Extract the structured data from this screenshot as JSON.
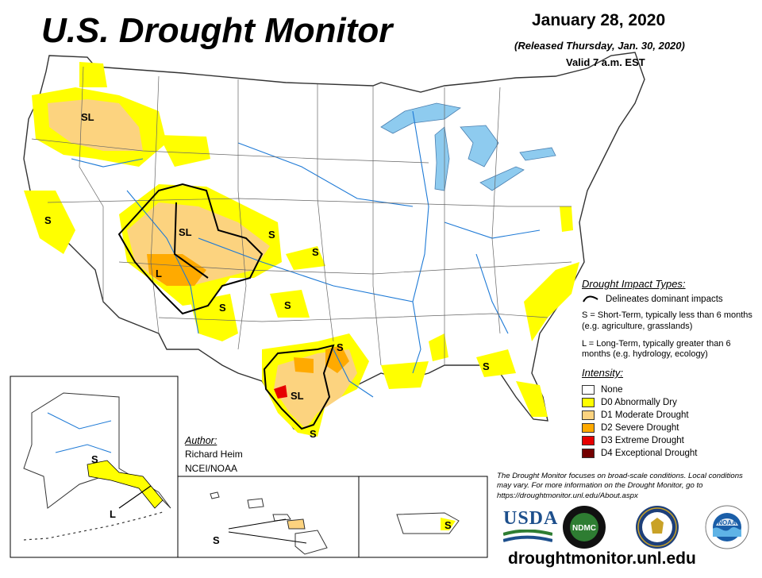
{
  "header": {
    "title": "U.S. Drought Monitor",
    "date": "January 28, 2020",
    "released": "(Released Thursday, Jan. 30, 2020)",
    "valid": "Valid 7 a.m. EST"
  },
  "legend": {
    "impact_heading": "Drought Impact Types:",
    "delineates": "Delineates dominant impacts",
    "short_term": "S = Short-Term, typically less than 6 months (e.g. agriculture, grasslands)",
    "long_term": "L = Long-Term, typically greater than 6 months (e.g. hydrology, ecology)",
    "intensity_heading": "Intensity:",
    "categories": [
      {
        "label": "None",
        "color": "#ffffff"
      },
      {
        "label": "D0 Abnormally Dry",
        "color": "#ffff00"
      },
      {
        "label": "D1 Moderate Drought",
        "color": "#fcd37f"
      },
      {
        "label": "D2 Severe Drought",
        "color": "#ffaa00"
      },
      {
        "label": "D3 Extreme Drought",
        "color": "#e60000"
      },
      {
        "label": "D4 Exceptional Drought",
        "color": "#730000"
      }
    ]
  },
  "author": {
    "heading": "Author:",
    "name": "Richard Heim",
    "org": "NCEI/NOAA"
  },
  "disclaimer": "The Drought Monitor focuses on broad-scale conditions. Local conditions may vary. For more information on the Drought Monitor, go to https://droughtmonitor.unl.edu/About.aspx",
  "url": "droughtmonitor.unl.edu",
  "map_labels": {
    "or": "SL",
    "ca": "S",
    "co_ut": "SL",
    "az_nm": "L",
    "ks_w": "S",
    "ks_e": "S",
    "nm_s": "S",
    "ok": "S",
    "tx_ne": "S",
    "tx_c": "SL",
    "tx_s": "S",
    "fl": "S",
    "ak_s": "S",
    "ak_l": "L",
    "hi": "S",
    "pr": "S"
  },
  "logos": {
    "usda": "USDA",
    "ndmc": "NDMC",
    "ndmc_ring": "NATIONAL DROUGHT MITIGATION CENTER",
    "noaa": "NOAA"
  },
  "colors": {
    "water": "#8ecbef",
    "river": "#1e7ad6",
    "boundary": "#555555"
  }
}
